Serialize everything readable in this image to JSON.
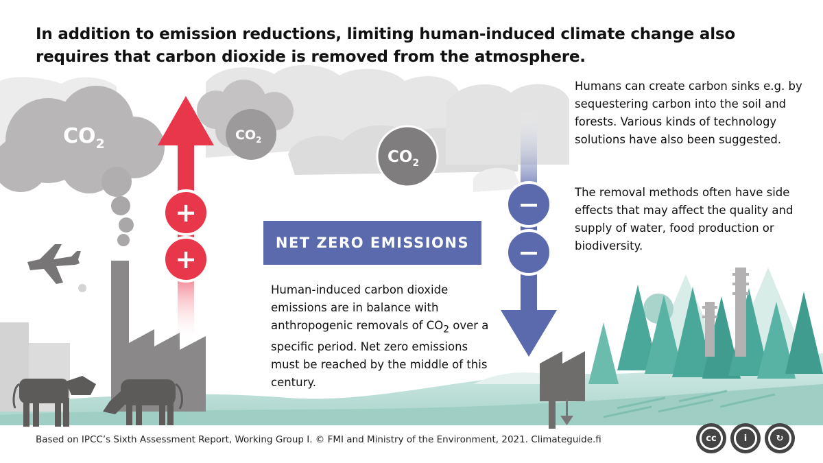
{
  "headline": "In addition to emission reductions, limiting human-induced climate change also requires that carbon dioxide is removed from the atmosphere.",
  "co2_label": "CO",
  "co2_subscript": "2",
  "net_zero_label": "NET ZERO EMISSIONS",
  "net_zero_definition": {
    "before": "Human-induced carbon dioxide emissions are in balance with anthropogenic removals of CO",
    "sub": "2",
    "after": " over a specific period. Net zero emissions must be reached by the middle of this century."
  },
  "sinks_text": "Humans can create carbon sinks e.g. by sequestering carbon into the soil and forests. Various kinds of technology solutions have also been suggested.",
  "side_effects_text": "The removal methods often have side effects that may affect the quality and supply of water, food production or biodiversity.",
  "plus_symbol": "+",
  "minus_symbol": "−",
  "credit": "Based on IPCC’s Sixth Assessment Report, Working Group I. © FMI and Ministry of the Environment, 2021. Climateguide.fi",
  "license_icons": [
    "cc-icon",
    "attribution-icon",
    "share-alike-icon"
  ],
  "license_labels": [
    "cc",
    "i",
    "↻"
  ],
  "colors": {
    "emission_red": "#e8364a",
    "removal_blue": "#5b6aad",
    "cloud_grey": "#c9c9c9",
    "industry_grey": "#8a8888",
    "forest_teal": "#4aa89a",
    "ground_green": "#b9ddd6"
  }
}
